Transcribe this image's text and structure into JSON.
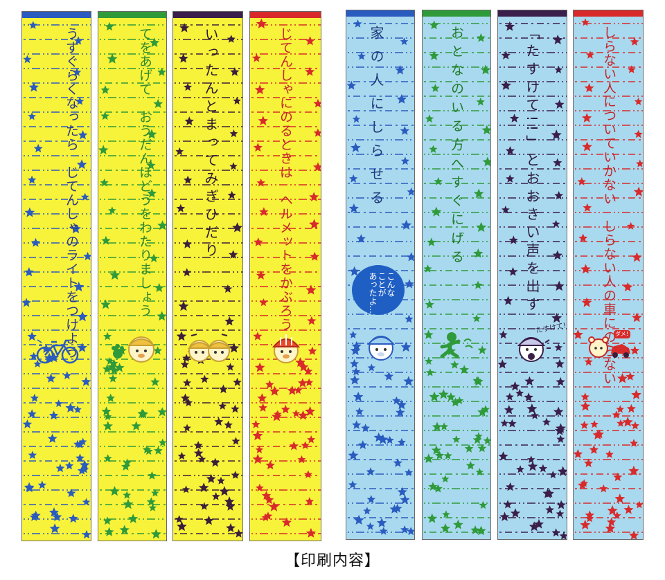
{
  "caption": "【印刷内容】",
  "group_bg": {
    "yellow": "#f7f23a",
    "blue": "#a9d9ee"
  },
  "strips": [
    {
      "id": "y1",
      "bg": "#f7f23a",
      "bar": "#2a5bbf",
      "ink": "#2a3a8a",
      "star": "#2a5bbf",
      "text": "うすぐらくなったら　じてんしゃのライトをつけよう",
      "icon": "bicycle-icon"
    },
    {
      "id": "y2",
      "bg": "#f7f23a",
      "bar": "#2f9a3a",
      "ink": "#2f8a2f",
      "star": "#2f9a3a",
      "text": "てをあげて　おうだんほどうをわたりましょう",
      "icon": "child-hand-icon"
    },
    {
      "id": "y3",
      "bg": "#f7f23a",
      "bar": "#3a1f4a",
      "ink": "#2b1a2e",
      "star": "#3a1f3a",
      "text": "いったんとまってみぎひだり",
      "icon": "two-children-icon"
    },
    {
      "id": "y4",
      "bg": "#f7f23a",
      "bar": "#d82a2a",
      "ink": "#c2262a",
      "star": "#d82a2a",
      "text": "じてんしゃにのるときは　ヘルメットをかぶろう",
      "icon": "helmet-child-icon"
    },
    {
      "id": "b1",
      "bg": "#a9d9ee",
      "bar": "#2a5bbf",
      "ink": "#1f3a7a",
      "star": "#2a5bbf",
      "text": "家の人にしらせる",
      "icon": "speech-bubble-child-icon",
      "bubble": "こんな\nことが\nあったよ…"
    },
    {
      "id": "b2",
      "bg": "#a9d9ee",
      "bar": "#2f9a3a",
      "ink": "#1f7a2a",
      "star": "#2f9a3a",
      "text": "おとなのいる方へすぐにげる",
      "icon": "running-child-icon"
    },
    {
      "id": "b3",
      "bg": "#a9d9ee",
      "bar": "#3a1f4a",
      "ink": "#2b1a3e",
      "star": "#3a1f4a",
      "text": "「たすけて!!」とおおきい声を出す",
      "icon": "shouting-child-icon",
      "small": "たすけて!"
    },
    {
      "id": "b4",
      "bg": "#a9d9ee",
      "bar": "#d82a2a",
      "ink": "#c2262a",
      "star": "#d82a2a",
      "text": "しらない人についていかない　しらない人の車にのらない",
      "icon": "bear-and-car-icon",
      "small": "ダメ!"
    }
  ]
}
